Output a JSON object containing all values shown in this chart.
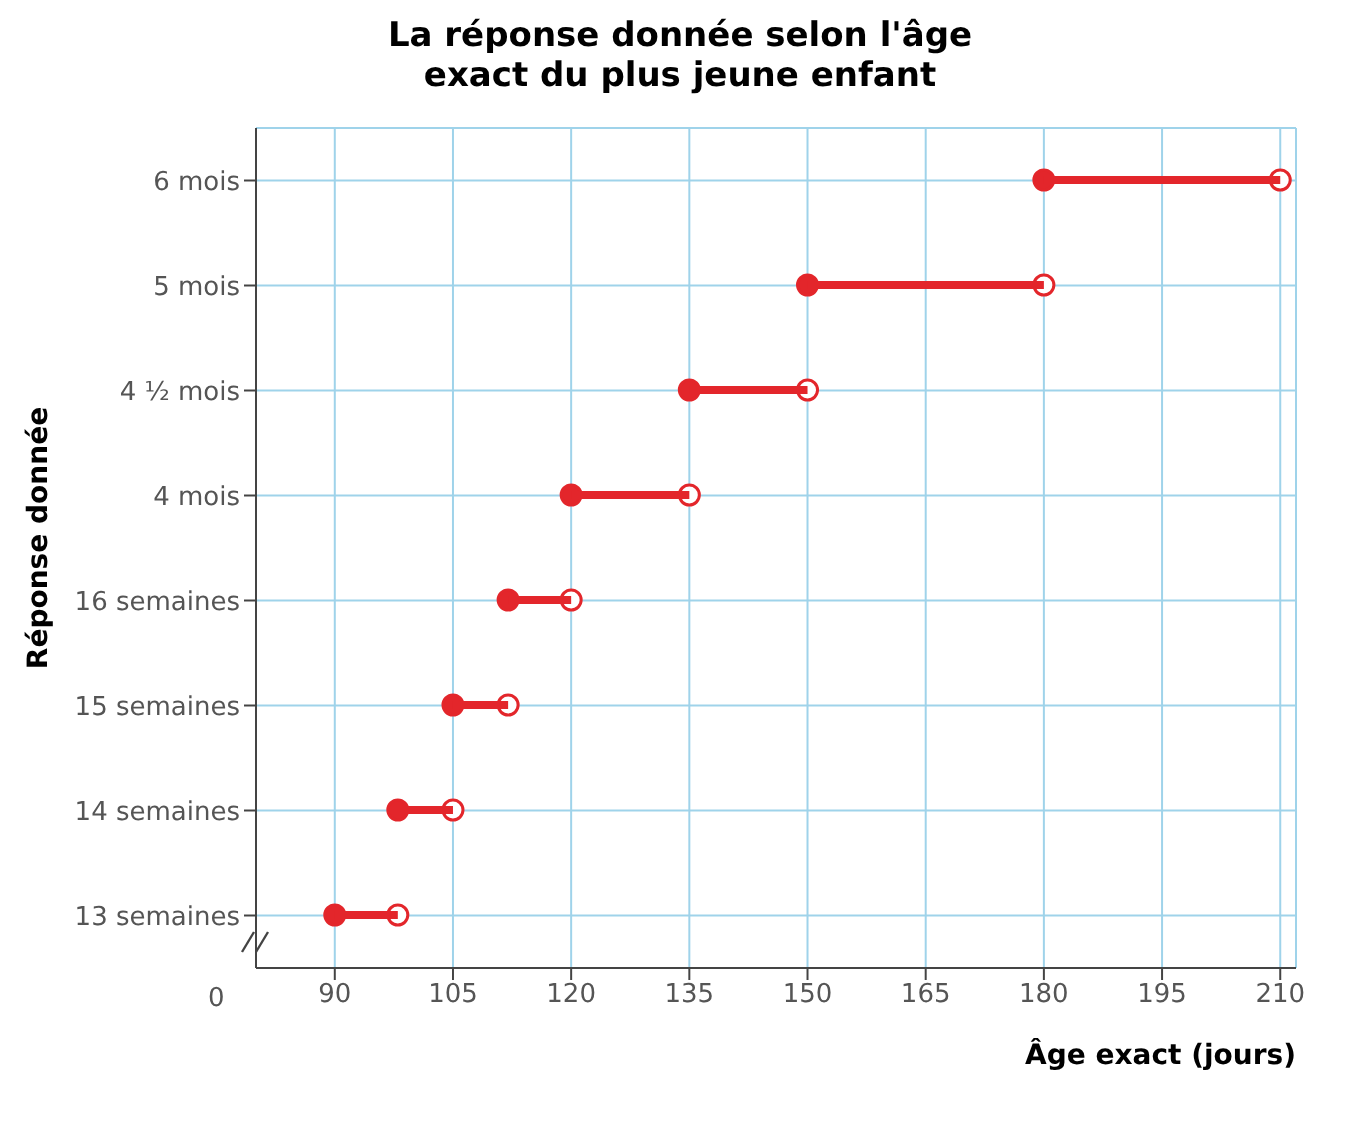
{
  "chart_data": {
    "type": "bar",
    "orientation": "horizontal",
    "title": "La réponse donnée selon l'âge exact du plus jeune enfant",
    "xlabel": "Âge exact (jours)",
    "ylabel": "Réponse donnée",
    "xlim": [
      80,
      212
    ],
    "xticks": [
      90,
      105,
      120,
      135,
      150,
      165,
      180,
      195,
      210
    ],
    "categories": [
      "6 mois",
      "5 mois",
      "4 ½ mois",
      "4 mois",
      "16 semaines",
      "15 semaines",
      "14 semaines",
      "13 semaines"
    ],
    "base": [
      180,
      150,
      135,
      120,
      112,
      105,
      98,
      90
    ],
    "values": [
      30,
      30,
      15,
      15,
      8,
      7,
      7,
      8
    ],
    "color": "#e3262b",
    "grid": true,
    "annotations": [
      "0"
    ]
  }
}
